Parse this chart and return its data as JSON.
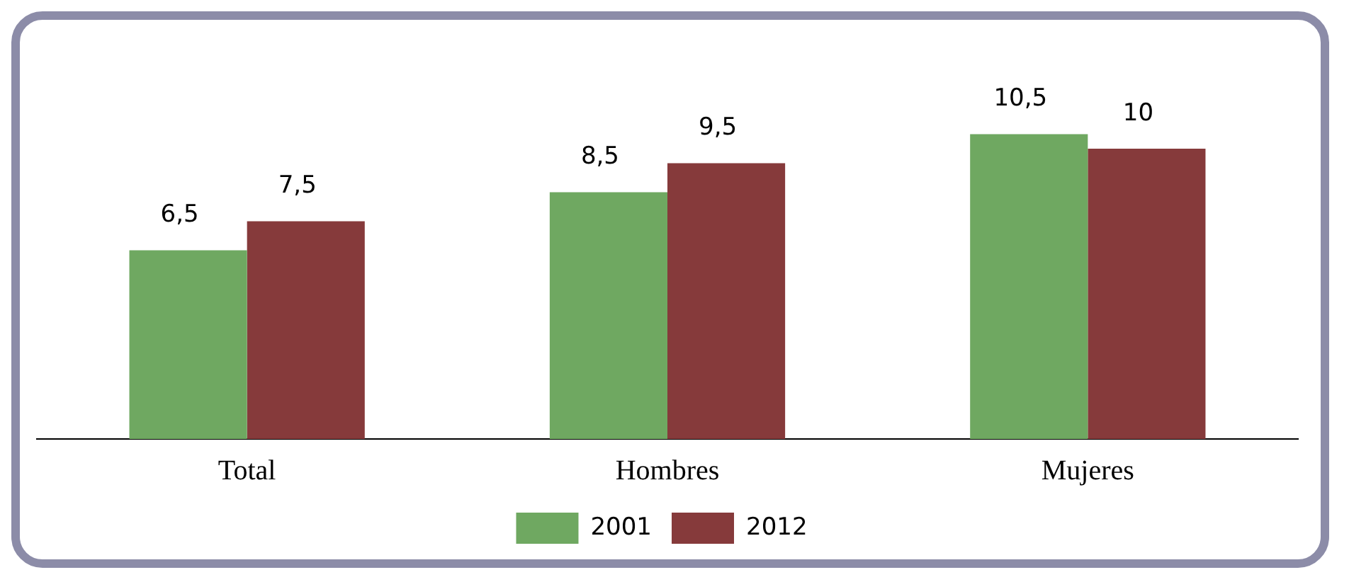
{
  "chart_data": {
    "type": "bar",
    "categories": [
      "Total",
      "Hombres",
      "Mujeres"
    ],
    "series": [
      {
        "name": "2001",
        "color": "#6fa861",
        "values": [
          6.5,
          8.5,
          10.5
        ],
        "value_labels": [
          "6,5",
          "8,5",
          "10,5"
        ]
      },
      {
        "name": "2012",
        "color": "#863a3b",
        "values": [
          7.5,
          9.5,
          10
        ],
        "value_labels": [
          "7,5",
          "9,5",
          "10"
        ]
      }
    ],
    "grid": false,
    "legend": "bottom"
  }
}
